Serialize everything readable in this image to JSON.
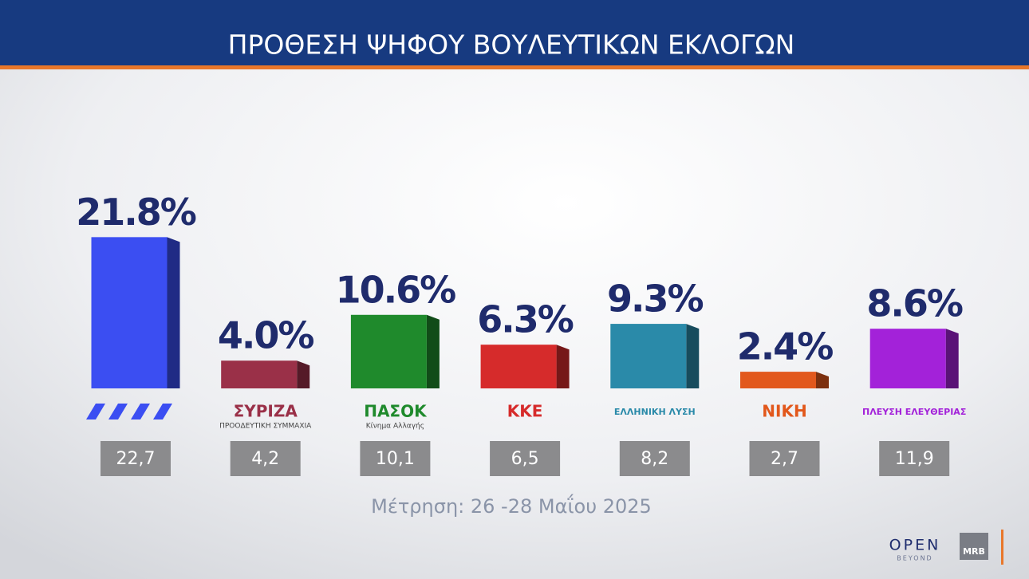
{
  "chart_data": {
    "type": "bar",
    "title": "ΠΡΟΘΕΣΗ ΨΗΦΟΥ ΒΟΥΛΕΥΤΙΚΩΝ ΕΚΛΟΓΩΝ",
    "categories": [
      null,
      "ΣΥΡΙΖΑ",
      "ΠΑΣΟΚ",
      "ΚΚΕ",
      "ΕΛΛΗΝΙΚΗ ΛΥΣΗ",
      "ΝΙΚΗ",
      "ΠΛΕΥΣΗ ΕΛΕΥΘΕΡΙΑΣ"
    ],
    "category_sublabels": [
      null,
      "ΠΡΟΟΔΕΥΤΙΚΗ ΣΥΜΜΑΧΙΑ",
      "Κίνημα Αλλαγής",
      null,
      null,
      null,
      null
    ],
    "values": [
      21.8,
      4.0,
      10.6,
      6.3,
      9.3,
      2.4,
      8.6
    ],
    "value_labels": [
      "21.8%",
      "4.0%",
      "10.6%",
      "6.3%",
      "9.3%",
      "2.4%",
      "8.6%"
    ],
    "colors": [
      "#3b4ef2",
      "#9a3048",
      "#1f8a2c",
      "#d62b2b",
      "#2a8aa9",
      "#e2581c",
      "#a322d9"
    ],
    "previous": {
      "values": [
        22.7,
        4.2,
        10.1,
        6.5,
        8.2,
        2.7,
        11.9
      ],
      "value_labels": [
        "22,7",
        "4,2",
        "10,1",
        "6,5",
        "8,2",
        "2,7",
        "11,9"
      ]
    },
    "footnote": "Μέτρηση: 26 -28 Μαΐου 2025",
    "logos": {
      "broadcaster": "OPEN",
      "broadcaster_tagline": "BEYOND",
      "pollster": "MRB"
    }
  }
}
